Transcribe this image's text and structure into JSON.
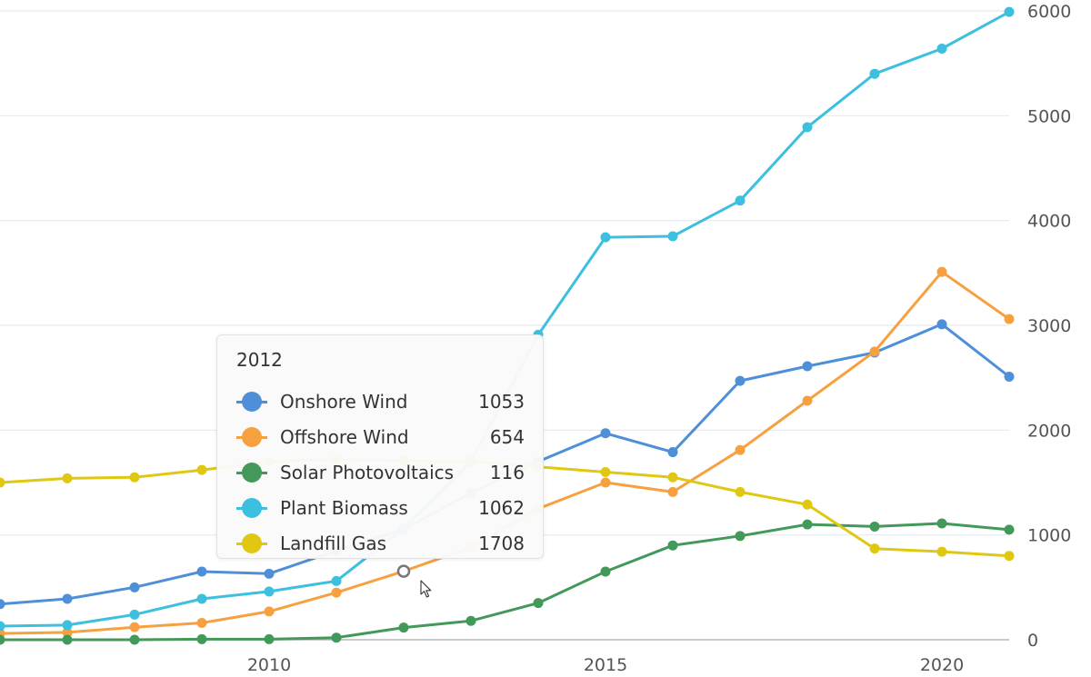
{
  "chart_data": {
    "type": "line",
    "title": "",
    "xlabel": "",
    "ylabel": "",
    "x": [
      2006,
      2007,
      2008,
      2009,
      2010,
      2011,
      2012,
      2013,
      2014,
      2015,
      2016,
      2017,
      2018,
      2019,
      2020,
      2021
    ],
    "x_ticks": [
      2010,
      2015,
      2020
    ],
    "y_ticks": [
      0,
      1000,
      2000,
      3000,
      4000,
      5000,
      6000
    ],
    "xlim": [
      2006,
      2021
    ],
    "ylim": [
      0,
      6000
    ],
    "y_axis_position": "right",
    "grid": true,
    "legend": "none",
    "series": [
      {
        "name": "Onshore Wind",
        "color": "#4e8fd8",
        "values": [
          340,
          390,
          500,
          650,
          630,
          850,
          1053,
          1400,
          1700,
          1970,
          1790,
          2470,
          2610,
          2740,
          3010,
          2510
        ]
      },
      {
        "name": "Offshore Wind",
        "color": "#f7a040",
        "values": [
          60,
          70,
          120,
          160,
          270,
          450,
          654,
          880,
          1250,
          1500,
          1410,
          1810,
          2280,
          2750,
          3510,
          3060
        ]
      },
      {
        "name": "Solar Photovoltaics",
        "color": "#43995a",
        "values": [
          0,
          0,
          0,
          5,
          5,
          20,
          116,
          180,
          350,
          650,
          900,
          990,
          1100,
          1080,
          1110,
          1050
        ]
      },
      {
        "name": "Plant Biomass",
        "color": "#3dbfe0",
        "values": [
          130,
          140,
          240,
          390,
          460,
          560,
          1062,
          1700,
          2910,
          3840,
          3850,
          4190,
          4890,
          5400,
          5640,
          5990
        ]
      },
      {
        "name": "Landfill Gas",
        "color": "#e0c812",
        "values": [
          1500,
          1540,
          1550,
          1620,
          1700,
          1720,
          1708,
          1700,
          1650,
          1600,
          1550,
          1410,
          1290,
          870,
          840,
          800
        ]
      }
    ],
    "tooltip": {
      "title": "2012",
      "rows": [
        {
          "name": "Onshore Wind",
          "value": "1053",
          "color": "#4e8fd8"
        },
        {
          "name": "Offshore Wind",
          "value": "654",
          "color": "#f7a040"
        },
        {
          "name": "Solar Photovoltaics",
          "value": "116",
          "color": "#43995a"
        },
        {
          "name": "Plant Biomass",
          "value": "1062",
          "color": "#3dbfe0"
        },
        {
          "name": "Landfill Gas",
          "value": "1708",
          "color": "#e0c812"
        }
      ]
    },
    "hovered_x": 2012,
    "hovered_series": "Offshore Wind"
  }
}
